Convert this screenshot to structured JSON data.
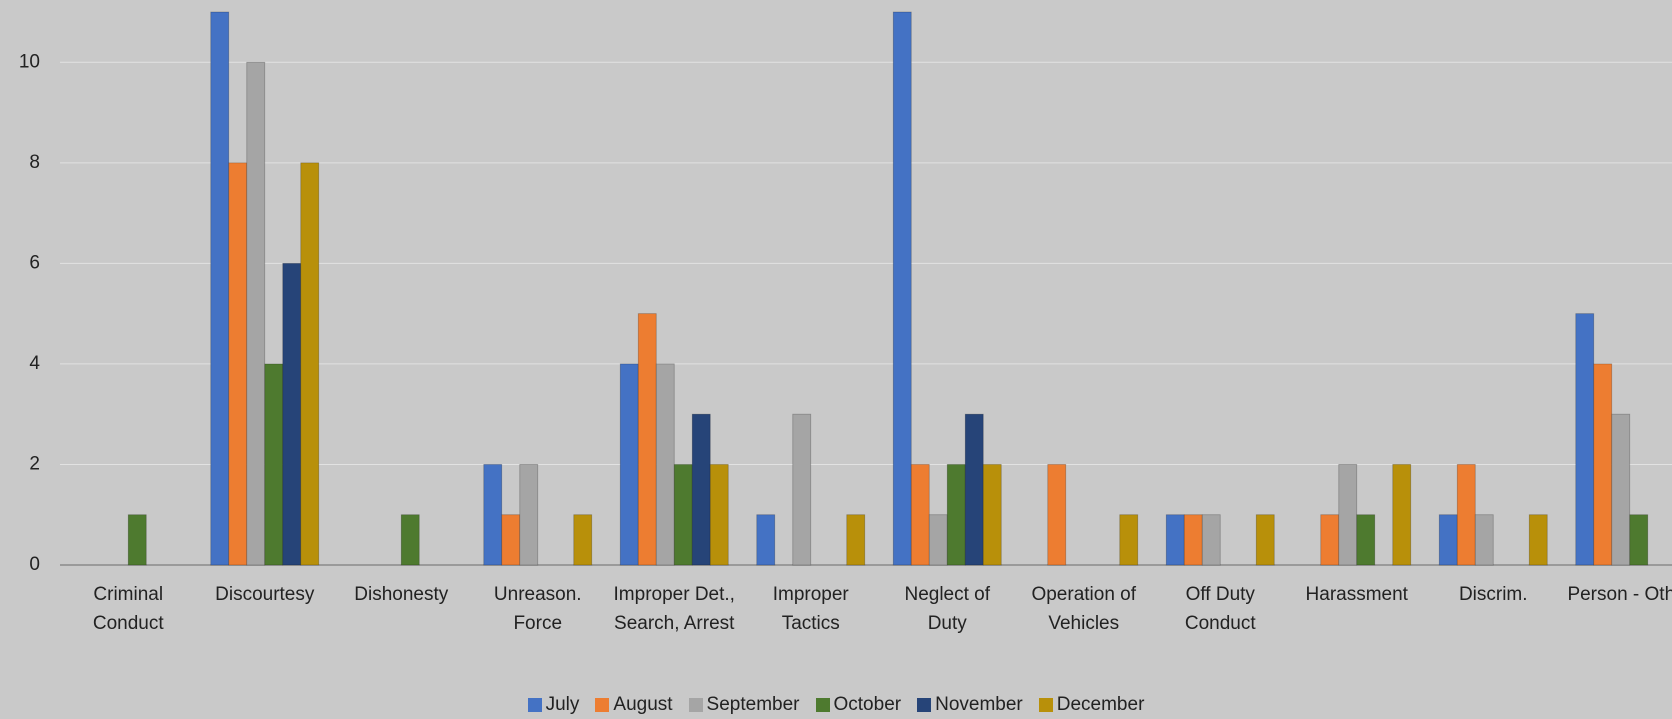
{
  "chart_data": {
    "type": "bar",
    "categories": [
      "Criminal Conduct",
      "Discourtesy",
      "Dishonesty",
      "Unreason. Force",
      "Improper Det., Search, Arrest",
      "Improper Tactics",
      "Neglect of Duty",
      "Operation of Vehicles",
      "Off Duty Conduct",
      "Harassment",
      "Discrim.",
      "Person - Other"
    ],
    "series": [
      {
        "name": "July",
        "color": "#4472c4",
        "values": [
          0,
          11,
          0,
          2,
          4,
          1,
          11,
          0,
          1,
          0,
          1,
          5
        ]
      },
      {
        "name": "August",
        "color": "#ed7d31",
        "values": [
          0,
          8,
          0,
          1,
          5,
          0,
          2,
          2,
          1,
          1,
          2,
          4
        ]
      },
      {
        "name": "September",
        "color": "#a5a5a5",
        "values": [
          0,
          10,
          0,
          2,
          4,
          3,
          1,
          0,
          1,
          2,
          1,
          3
        ]
      },
      {
        "name": "October",
        "color": "#4e7a2f",
        "values": [
          1,
          4,
          1,
          0,
          2,
          0,
          2,
          0,
          0,
          1,
          0,
          1
        ]
      },
      {
        "name": "November",
        "color": "#264478",
        "values": [
          0,
          6,
          0,
          0,
          3,
          0,
          3,
          0,
          0,
          0,
          0,
          0
        ]
      },
      {
        "name": "December",
        "color": "#b8900a",
        "values": [
          0,
          8,
          0,
          1,
          2,
          1,
          2,
          1,
          1,
          2,
          1,
          0
        ]
      }
    ],
    "ylim": [
      0,
      11
    ],
    "yticks": [
      0,
      2,
      4,
      6,
      8,
      10
    ],
    "grid": true,
    "legend": "bottom"
  }
}
